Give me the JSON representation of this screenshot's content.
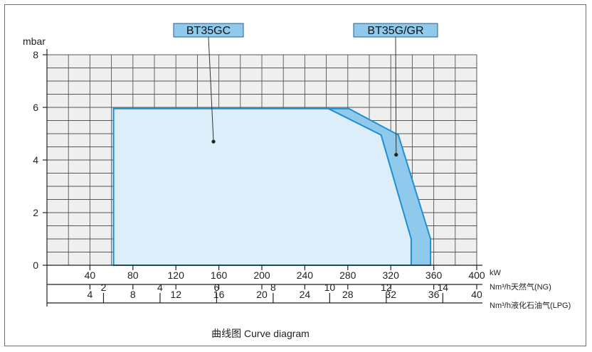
{
  "chart_data": {
    "type": "area",
    "title": "",
    "caption": "曲线图  Curve diagram",
    "y_unit": "mbar",
    "ylim": [
      0,
      8
    ],
    "y_ticks": [
      "0",
      "2",
      "4",
      "6",
      "8"
    ],
    "xlim": [
      0,
      400
    ],
    "x_axes": [
      {
        "unit": "kW",
        "range": [
          0,
          400
        ],
        "ticks": [
          "40",
          "80",
          "120",
          "160",
          "200",
          "240",
          "280",
          "320",
          "360",
          "400"
        ]
      },
      {
        "unit": "Nm³/h天然气(NG)",
        "range": [
          0,
          40
        ],
        "ticks": [
          "4",
          "8",
          "12",
          "16",
          "20",
          "24",
          "28",
          "32",
          "36",
          "40"
        ]
      },
      {
        "unit": "Nm³/h液化石油气(LPG)",
        "range": [
          0,
          15.2
        ],
        "ticks": [
          "2",
          "4",
          "6",
          "8",
          "10",
          "12",
          "14"
        ]
      }
    ],
    "series": [
      {
        "name": "BT35GC",
        "color": "#dceefa",
        "points": [
          [
            62,
            0
          ],
          [
            62,
            5.95
          ],
          [
            262,
            5.95
          ],
          [
            311,
            4.95
          ],
          [
            339,
            1.0
          ],
          [
            339,
            0
          ]
        ]
      },
      {
        "name": "BT35G/GR",
        "color": "#8fcaed",
        "points": [
          [
            62,
            0
          ],
          [
            62,
            5.95
          ],
          [
            281,
            5.95
          ],
          [
            327,
            4.95
          ],
          [
            357,
            1.0
          ],
          [
            357,
            0
          ]
        ]
      }
    ],
    "annotations": [
      {
        "label": "BT35GC",
        "x": 155,
        "y": 4.7
      },
      {
        "label": "BT35G/GR",
        "x": 325,
        "y": 4.2
      }
    ],
    "grid": true,
    "colors": {
      "outline": "#1e8fd2",
      "grid": "#555555",
      "plot_bg": "#efefef"
    }
  }
}
